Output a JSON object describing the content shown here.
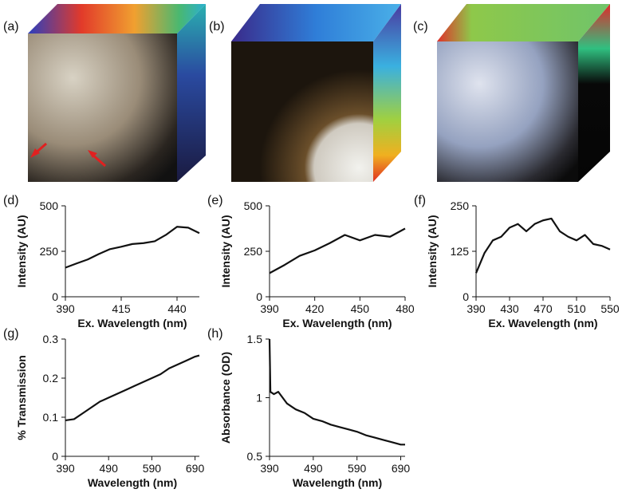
{
  "images": [
    "(a)",
    "(b)",
    "(c)"
  ],
  "chart_data": [
    {
      "type": "line",
      "label": "(d)",
      "x_label": "Ex. Wavelength (nm)",
      "y_label": "Intensity (AU)",
      "x": [
        390,
        395,
        400,
        405,
        410,
        415,
        420,
        425,
        430,
        435,
        440,
        445,
        450
      ],
      "values": [
        160,
        183,
        205,
        235,
        262,
        275,
        290,
        295,
        305,
        340,
        385,
        380,
        350
      ],
      "xlim": [
        390,
        450
      ],
      "xticks": [
        390,
        415,
        440
      ],
      "ylim": [
        0,
        500
      ],
      "yticks": [
        0,
        250,
        500
      ],
      "color": "#111111"
    },
    {
      "type": "line",
      "label": "(e)",
      "x_label": "Ex. Wavelength (nm)",
      "y_label": "Intensity (AU)",
      "x": [
        390,
        400,
        410,
        420,
        430,
        440,
        450,
        460,
        470,
        480
      ],
      "values": [
        130,
        175,
        225,
        255,
        295,
        340,
        310,
        340,
        330,
        375
      ],
      "xlim": [
        390,
        480
      ],
      "xticks": [
        390,
        420,
        450,
        480
      ],
      "ylim": [
        0,
        500
      ],
      "yticks": [
        0,
        250,
        500
      ],
      "color": "#111111"
    },
    {
      "type": "line",
      "label": "(f)",
      "x_label": "Ex. Wavelength (nm)",
      "y_label": "Intensity (AU)",
      "x": [
        390,
        400,
        410,
        420,
        430,
        440,
        450,
        460,
        470,
        480,
        490,
        500,
        510,
        520,
        530,
        540,
        550
      ],
      "values": [
        65,
        120,
        155,
        165,
        190,
        200,
        180,
        200,
        210,
        215,
        180,
        165,
        155,
        170,
        145,
        140,
        130
      ],
      "xlim": [
        390,
        550
      ],
      "xticks": [
        390,
        430,
        470,
        510,
        550
      ],
      "ylim": [
        0,
        250
      ],
      "yticks": [
        0,
        125,
        250
      ],
      "color": "#111111"
    },
    {
      "type": "line",
      "label": "(g)",
      "x_label": "Wavelength (nm)",
      "y_label": "% Transmission",
      "x": [
        390,
        410,
        430,
        450,
        470,
        490,
        510,
        530,
        550,
        570,
        590,
        610,
        630,
        650,
        670,
        690,
        700
      ],
      "values": [
        0.092,
        0.095,
        0.11,
        0.125,
        0.14,
        0.15,
        0.16,
        0.17,
        0.18,
        0.19,
        0.2,
        0.21,
        0.225,
        0.235,
        0.245,
        0.255,
        0.258
      ],
      "xlim": [
        390,
        700
      ],
      "xticks": [
        390,
        490,
        590,
        690
      ],
      "ylim": [
        0,
        0.3
      ],
      "yticks": [
        0,
        0.1,
        0.2,
        0.3
      ],
      "color": "#111111"
    },
    {
      "type": "line",
      "label": "(h)",
      "x_label": "Wavelength (nm)",
      "y_label": "Absorbance (OD)",
      "x": [
        390,
        392,
        400,
        410,
        430,
        450,
        470,
        490,
        510,
        530,
        550,
        570,
        590,
        610,
        630,
        650,
        670,
        690,
        700
      ],
      "values": [
        1.5,
        1.05,
        1.03,
        1.05,
        0.95,
        0.9,
        0.87,
        0.82,
        0.8,
        0.77,
        0.75,
        0.73,
        0.71,
        0.68,
        0.66,
        0.64,
        0.62,
        0.6,
        0.6
      ],
      "xlim": [
        390,
        700
      ],
      "xticks": [
        390,
        490,
        590,
        690
      ],
      "ylim": [
        0.5,
        1.5
      ],
      "yticks": [
        0.5,
        1,
        1.5
      ],
      "color": "#111111"
    }
  ]
}
